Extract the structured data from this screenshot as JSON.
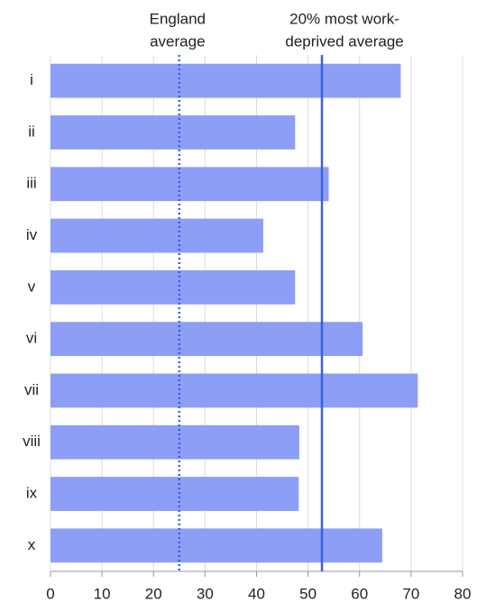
{
  "chart_data": {
    "type": "hbar",
    "categories": [
      "i",
      "ii",
      "iii",
      "iv",
      "v",
      "vi",
      "vii",
      "viii",
      "ix",
      "x"
    ],
    "values": [
      68,
      47.5,
      54,
      41.3,
      47.5,
      60.6,
      71.3,
      48.3,
      48.2,
      64.4
    ],
    "color": "#8c9ef6",
    "xlim": [
      0,
      80
    ],
    "xticks": [
      0,
      10,
      20,
      30,
      40,
      50,
      60,
      70,
      80
    ],
    "grid": true,
    "reference_lines": [
      {
        "lines": [
          "England",
          "average"
        ],
        "value": 25,
        "style": "dotted",
        "color": "#3d5fe0"
      },
      {
        "lines": [
          "20% most work-",
          "deprived average"
        ],
        "value": 52.7,
        "style": "solid",
        "color": "#3d5fe0"
      }
    ]
  }
}
